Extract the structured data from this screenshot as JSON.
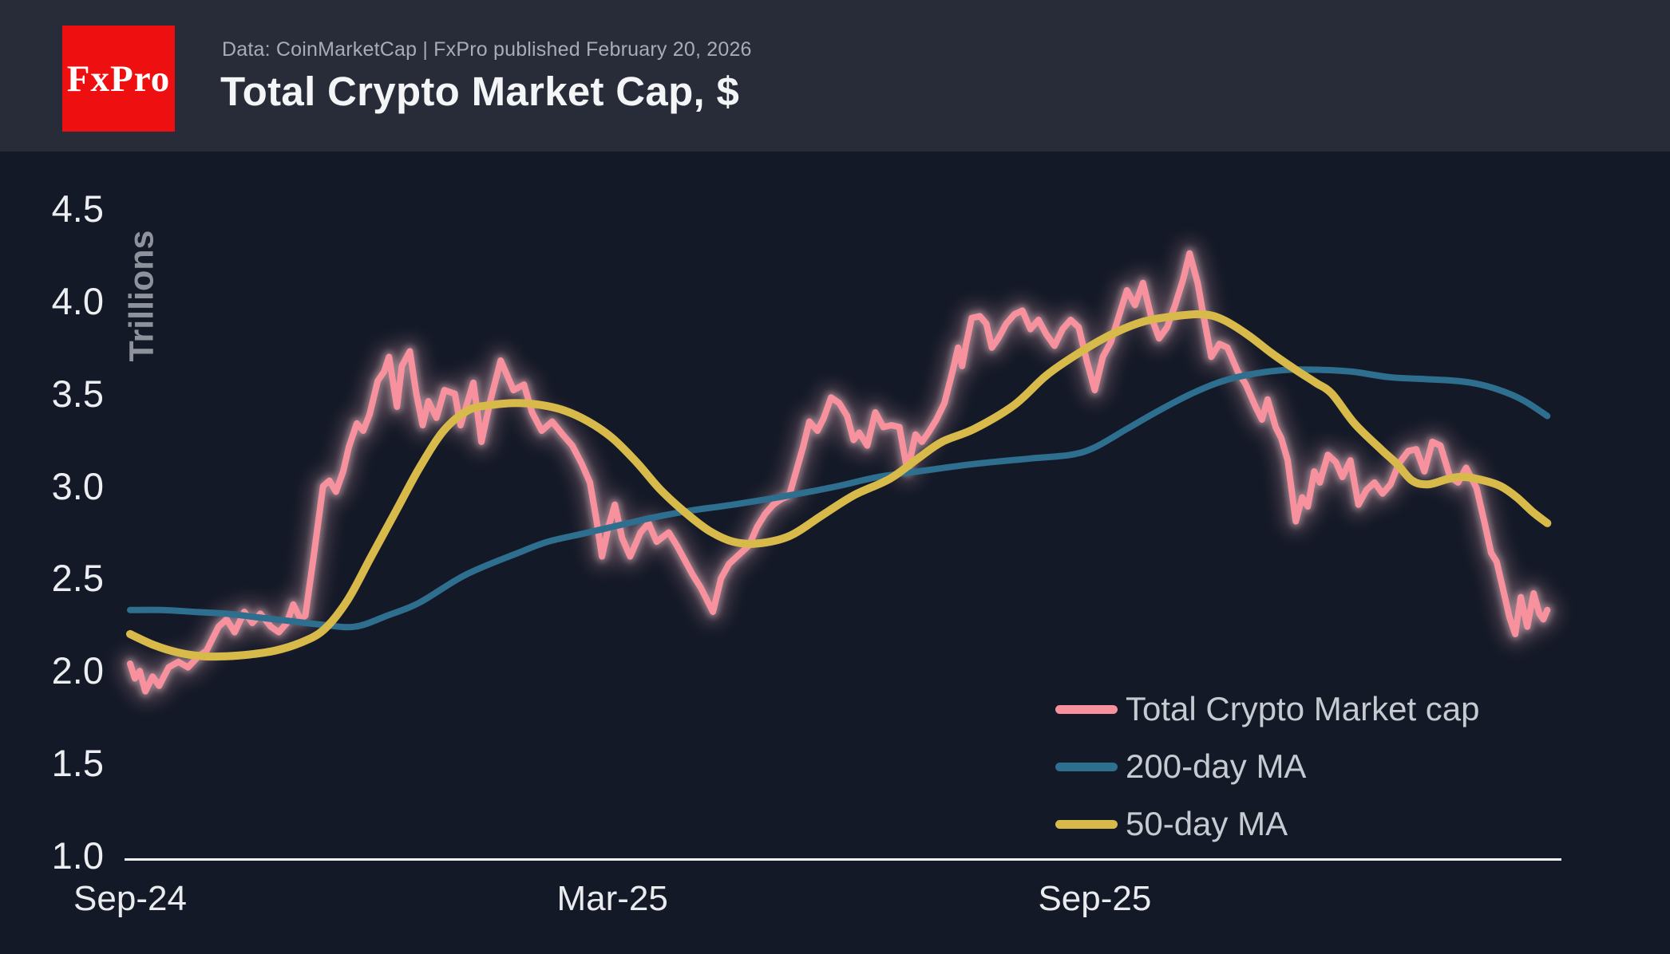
{
  "header": {
    "logo_text": "FxPro",
    "logo_bg": "#ee1010",
    "logo_color": "#ffffff",
    "subtitle": "Data: CoinMarketCap | FxPro published February 20, 2026",
    "title": "Total Crypto Market Cap, $"
  },
  "legend": {
    "position": "bottom-right",
    "items": [
      {
        "label": "Total Crypto Market cap",
        "color": "#f8919e"
      },
      {
        "label": "200-day MA",
        "color": "#2e6e8e"
      },
      {
        "label": "50-day MA",
        "color": "#d8ba4b"
      }
    ]
  },
  "colors": {
    "page_bg": "#141927",
    "header_bg": "#282c38",
    "axis_line": "#f2f3f5",
    "tick_text": "#eceef2",
    "ylabel_text": "#8e929d",
    "pink": "#f8919e",
    "pink_glow": "#f3b3c0",
    "teal": "#2e6e8e",
    "yellow": "#d8ba4b"
  },
  "chart_data": {
    "type": "line",
    "title": "Total Crypto Market Cap, $",
    "ylabel": "Trillions",
    "xlabel": "",
    "grid": false,
    "ylim": [
      1.0,
      4.5
    ],
    "y_ticks": [
      4.5,
      4.0,
      3.5,
      3.0,
      2.5,
      2.0,
      1.5,
      1.0
    ],
    "x_unit": "months since Sep-2024",
    "x_range_months": [
      0,
      17.63
    ],
    "x_ticks": [
      {
        "label": "Sep-24",
        "m": 0
      },
      {
        "label": "Mar-25",
        "m": 6
      },
      {
        "label": "Sep-25",
        "m": 12
      }
    ],
    "series": [
      {
        "name": "Total Crypto Market cap",
        "color": "#f8919e",
        "stroke_width": 8,
        "glow": true,
        "smooth": false,
        "points": [
          [
            0,
            2.04
          ],
          [
            0.06,
            1.96
          ],
          [
            0.12,
            2.0
          ],
          [
            0.19,
            1.89
          ],
          [
            0.28,
            1.97
          ],
          [
            0.36,
            1.92
          ],
          [
            0.48,
            2.02
          ],
          [
            0.6,
            2.05
          ],
          [
            0.72,
            2.02
          ],
          [
            0.85,
            2.08
          ],
          [
            0.95,
            2.11
          ],
          [
            1.1,
            2.24
          ],
          [
            1.2,
            2.28
          ],
          [
            1.3,
            2.21
          ],
          [
            1.42,
            2.32
          ],
          [
            1.52,
            2.26
          ],
          [
            1.62,
            2.31
          ],
          [
            1.75,
            2.24
          ],
          [
            1.85,
            2.21
          ],
          [
            1.95,
            2.26
          ],
          [
            2.03,
            2.36
          ],
          [
            2.12,
            2.28
          ],
          [
            2.18,
            2.3
          ],
          [
            2.28,
            2.61
          ],
          [
            2.4,
            3.0
          ],
          [
            2.48,
            3.03
          ],
          [
            2.56,
            2.97
          ],
          [
            2.65,
            3.08
          ],
          [
            2.72,
            3.21
          ],
          [
            2.82,
            3.34
          ],
          [
            2.9,
            3.3
          ],
          [
            2.98,
            3.39
          ],
          [
            3.08,
            3.57
          ],
          [
            3.16,
            3.62
          ],
          [
            3.22,
            3.7
          ],
          [
            3.32,
            3.43
          ],
          [
            3.38,
            3.65
          ],
          [
            3.48,
            3.73
          ],
          [
            3.56,
            3.5
          ],
          [
            3.64,
            3.33
          ],
          [
            3.71,
            3.46
          ],
          [
            3.81,
            3.37
          ],
          [
            3.91,
            3.52
          ],
          [
            4.04,
            3.5
          ],
          [
            4.11,
            3.33
          ],
          [
            4.27,
            3.56
          ],
          [
            4.37,
            3.24
          ],
          [
            4.48,
            3.46
          ],
          [
            4.61,
            3.68
          ],
          [
            4.77,
            3.52
          ],
          [
            4.9,
            3.55
          ],
          [
            5.0,
            3.4
          ],
          [
            5.12,
            3.3
          ],
          [
            5.25,
            3.35
          ],
          [
            5.38,
            3.28
          ],
          [
            5.5,
            3.22
          ],
          [
            5.62,
            3.12
          ],
          [
            5.72,
            3.02
          ],
          [
            5.8,
            2.82
          ],
          [
            5.87,
            2.62
          ],
          [
            5.95,
            2.78
          ],
          [
            6.03,
            2.9
          ],
          [
            6.12,
            2.72
          ],
          [
            6.22,
            2.62
          ],
          [
            6.35,
            2.75
          ],
          [
            6.45,
            2.8
          ],
          [
            6.55,
            2.7
          ],
          [
            6.7,
            2.75
          ],
          [
            6.8,
            2.68
          ],
          [
            6.9,
            2.6
          ],
          [
            7.0,
            2.52
          ],
          [
            7.1,
            2.45
          ],
          [
            7.25,
            2.32
          ],
          [
            7.35,
            2.5
          ],
          [
            7.45,
            2.58
          ],
          [
            7.55,
            2.62
          ],
          [
            7.7,
            2.68
          ],
          [
            7.8,
            2.78
          ],
          [
            7.9,
            2.85
          ],
          [
            8.0,
            2.9
          ],
          [
            8.1,
            2.93
          ],
          [
            8.2,
            2.95
          ],
          [
            8.37,
            3.21
          ],
          [
            8.45,
            3.35
          ],
          [
            8.55,
            3.3
          ],
          [
            8.63,
            3.37
          ],
          [
            8.72,
            3.48
          ],
          [
            8.82,
            3.45
          ],
          [
            8.92,
            3.38
          ],
          [
            9.0,
            3.25
          ],
          [
            9.07,
            3.29
          ],
          [
            9.17,
            3.22
          ],
          [
            9.27,
            3.4
          ],
          [
            9.37,
            3.32
          ],
          [
            9.47,
            3.33
          ],
          [
            9.57,
            3.32
          ],
          [
            9.67,
            3.08
          ],
          [
            9.77,
            3.28
          ],
          [
            9.85,
            3.24
          ],
          [
            9.93,
            3.29
          ],
          [
            10.03,
            3.36
          ],
          [
            10.13,
            3.45
          ],
          [
            10.23,
            3.62
          ],
          [
            10.3,
            3.75
          ],
          [
            10.35,
            3.65
          ],
          [
            10.4,
            3.77
          ],
          [
            10.47,
            3.91
          ],
          [
            10.57,
            3.92
          ],
          [
            10.65,
            3.88
          ],
          [
            10.72,
            3.75
          ],
          [
            10.8,
            3.8
          ],
          [
            10.9,
            3.88
          ],
          [
            11.0,
            3.93
          ],
          [
            11.1,
            3.95
          ],
          [
            11.2,
            3.85
          ],
          [
            11.3,
            3.9
          ],
          [
            11.4,
            3.82
          ],
          [
            11.5,
            3.76
          ],
          [
            11.6,
            3.85
          ],
          [
            11.7,
            3.9
          ],
          [
            11.8,
            3.86
          ],
          [
            11.9,
            3.68
          ],
          [
            12.0,
            3.52
          ],
          [
            12.1,
            3.7
          ],
          [
            12.2,
            3.78
          ],
          [
            12.3,
            3.92
          ],
          [
            12.4,
            4.06
          ],
          [
            12.5,
            3.98
          ],
          [
            12.6,
            4.1
          ],
          [
            12.7,
            3.92
          ],
          [
            12.8,
            3.8
          ],
          [
            12.9,
            3.86
          ],
          [
            13.0,
            3.98
          ],
          [
            13.1,
            4.12
          ],
          [
            13.18,
            4.26
          ],
          [
            13.28,
            4.1
          ],
          [
            13.35,
            3.93
          ],
          [
            13.45,
            3.7
          ],
          [
            13.55,
            3.77
          ],
          [
            13.65,
            3.75
          ],
          [
            13.78,
            3.62
          ],
          [
            13.88,
            3.55
          ],
          [
            14.0,
            3.43
          ],
          [
            14.08,
            3.36
          ],
          [
            14.15,
            3.47
          ],
          [
            14.25,
            3.32
          ],
          [
            14.32,
            3.26
          ],
          [
            14.4,
            3.14
          ],
          [
            14.5,
            2.81
          ],
          [
            14.58,
            2.94
          ],
          [
            14.65,
            2.89
          ],
          [
            14.73,
            3.08
          ],
          [
            14.8,
            3.02
          ],
          [
            14.9,
            3.17
          ],
          [
            15.0,
            3.13
          ],
          [
            15.08,
            3.05
          ],
          [
            15.18,
            3.14
          ],
          [
            15.28,
            2.9
          ],
          [
            15.38,
            2.98
          ],
          [
            15.48,
            3.02
          ],
          [
            15.58,
            2.96
          ],
          [
            15.68,
            3.01
          ],
          [
            15.78,
            3.12
          ],
          [
            15.9,
            3.19
          ],
          [
            16.0,
            3.2
          ],
          [
            16.1,
            3.08
          ],
          [
            16.2,
            3.24
          ],
          [
            16.3,
            3.22
          ],
          [
            16.42,
            3.05
          ],
          [
            16.52,
            3.02
          ],
          [
            16.62,
            3.1
          ],
          [
            16.75,
            2.99
          ],
          [
            16.85,
            2.8
          ],
          [
            16.93,
            2.64
          ],
          [
            17.0,
            2.59
          ],
          [
            17.08,
            2.44
          ],
          [
            17.16,
            2.29
          ],
          [
            17.23,
            2.2
          ],
          [
            17.3,
            2.4
          ],
          [
            17.38,
            2.24
          ],
          [
            17.46,
            2.42
          ],
          [
            17.53,
            2.31
          ],
          [
            17.58,
            2.28
          ],
          [
            17.63,
            2.33
          ]
        ]
      },
      {
        "name": "200-day MA",
        "color": "#2e6e8e",
        "stroke_width": 8,
        "glow": false,
        "smooth": true,
        "points": [
          [
            0,
            2.33
          ],
          [
            0.4,
            2.33
          ],
          [
            0.8,
            2.32
          ],
          [
            1.2,
            2.31
          ],
          [
            1.6,
            2.29
          ],
          [
            2.0,
            2.27
          ],
          [
            2.4,
            2.25
          ],
          [
            2.8,
            2.24
          ],
          [
            3.2,
            2.3
          ],
          [
            3.6,
            2.37
          ],
          [
            4.17,
            2.52
          ],
          [
            4.83,
            2.64
          ],
          [
            5.2,
            2.7
          ],
          [
            5.6,
            2.74
          ],
          [
            6.0,
            2.78
          ],
          [
            6.5,
            2.83
          ],
          [
            7.0,
            2.87
          ],
          [
            7.5,
            2.9
          ],
          [
            8.2,
            2.95
          ],
          [
            8.8,
            3.0
          ],
          [
            9.3,
            3.05
          ],
          [
            9.8,
            3.08
          ],
          [
            10.5,
            3.12
          ],
          [
            11.2,
            3.15
          ],
          [
            11.7,
            3.17
          ],
          [
            12.0,
            3.21
          ],
          [
            12.4,
            3.31
          ],
          [
            12.8,
            3.41
          ],
          [
            13.2,
            3.5
          ],
          [
            13.6,
            3.57
          ],
          [
            14.0,
            3.61
          ],
          [
            14.4,
            3.63
          ],
          [
            14.8,
            3.63
          ],
          [
            15.2,
            3.62
          ],
          [
            15.66,
            3.59
          ],
          [
            16.1,
            3.58
          ],
          [
            16.5,
            3.57
          ],
          [
            16.8,
            3.55
          ],
          [
            17.1,
            3.51
          ],
          [
            17.35,
            3.46
          ],
          [
            17.63,
            3.38
          ]
        ]
      },
      {
        "name": "50-day MA",
        "color": "#d8ba4b",
        "stroke_width": 10,
        "glow": false,
        "smooth": true,
        "points": [
          [
            0,
            2.2
          ],
          [
            0.3,
            2.14
          ],
          [
            0.6,
            2.1
          ],
          [
            0.9,
            2.08
          ],
          [
            1.2,
            2.08
          ],
          [
            1.5,
            2.09
          ],
          [
            1.8,
            2.11
          ],
          [
            2.1,
            2.15
          ],
          [
            2.4,
            2.22
          ],
          [
            2.7,
            2.38
          ],
          [
            3.0,
            2.62
          ],
          [
            3.3,
            2.86
          ],
          [
            3.6,
            3.1
          ],
          [
            3.9,
            3.3
          ],
          [
            4.2,
            3.41
          ],
          [
            4.5,
            3.44
          ],
          [
            4.8,
            3.45
          ],
          [
            5.1,
            3.44
          ],
          [
            5.4,
            3.41
          ],
          [
            5.7,
            3.35
          ],
          [
            6.0,
            3.26
          ],
          [
            6.3,
            3.13
          ],
          [
            6.6,
            2.98
          ],
          [
            6.9,
            2.86
          ],
          [
            7.2,
            2.76
          ],
          [
            7.5,
            2.7
          ],
          [
            7.8,
            2.69
          ],
          [
            8.2,
            2.73
          ],
          [
            8.6,
            2.84
          ],
          [
            9.0,
            2.95
          ],
          [
            9.45,
            3.04
          ],
          [
            9.8,
            3.15
          ],
          [
            10.1,
            3.24
          ],
          [
            10.5,
            3.31
          ],
          [
            11.0,
            3.44
          ],
          [
            11.4,
            3.6
          ],
          [
            11.8,
            3.72
          ],
          [
            12.2,
            3.82
          ],
          [
            12.6,
            3.89
          ],
          [
            13.0,
            3.92
          ],
          [
            13.35,
            3.93
          ],
          [
            13.6,
            3.9
          ],
          [
            13.9,
            3.82
          ],
          [
            14.2,
            3.72
          ],
          [
            14.5,
            3.63
          ],
          [
            14.75,
            3.56
          ],
          [
            14.95,
            3.5
          ],
          [
            15.23,
            3.34
          ],
          [
            15.56,
            3.2
          ],
          [
            15.76,
            3.12
          ],
          [
            15.95,
            3.03
          ],
          [
            16.15,
            3.01
          ],
          [
            16.4,
            3.04
          ],
          [
            16.6,
            3.05
          ],
          [
            16.85,
            3.03
          ],
          [
            17.05,
            3.0
          ],
          [
            17.25,
            2.94
          ],
          [
            17.45,
            2.86
          ],
          [
            17.63,
            2.8
          ]
        ]
      }
    ]
  }
}
